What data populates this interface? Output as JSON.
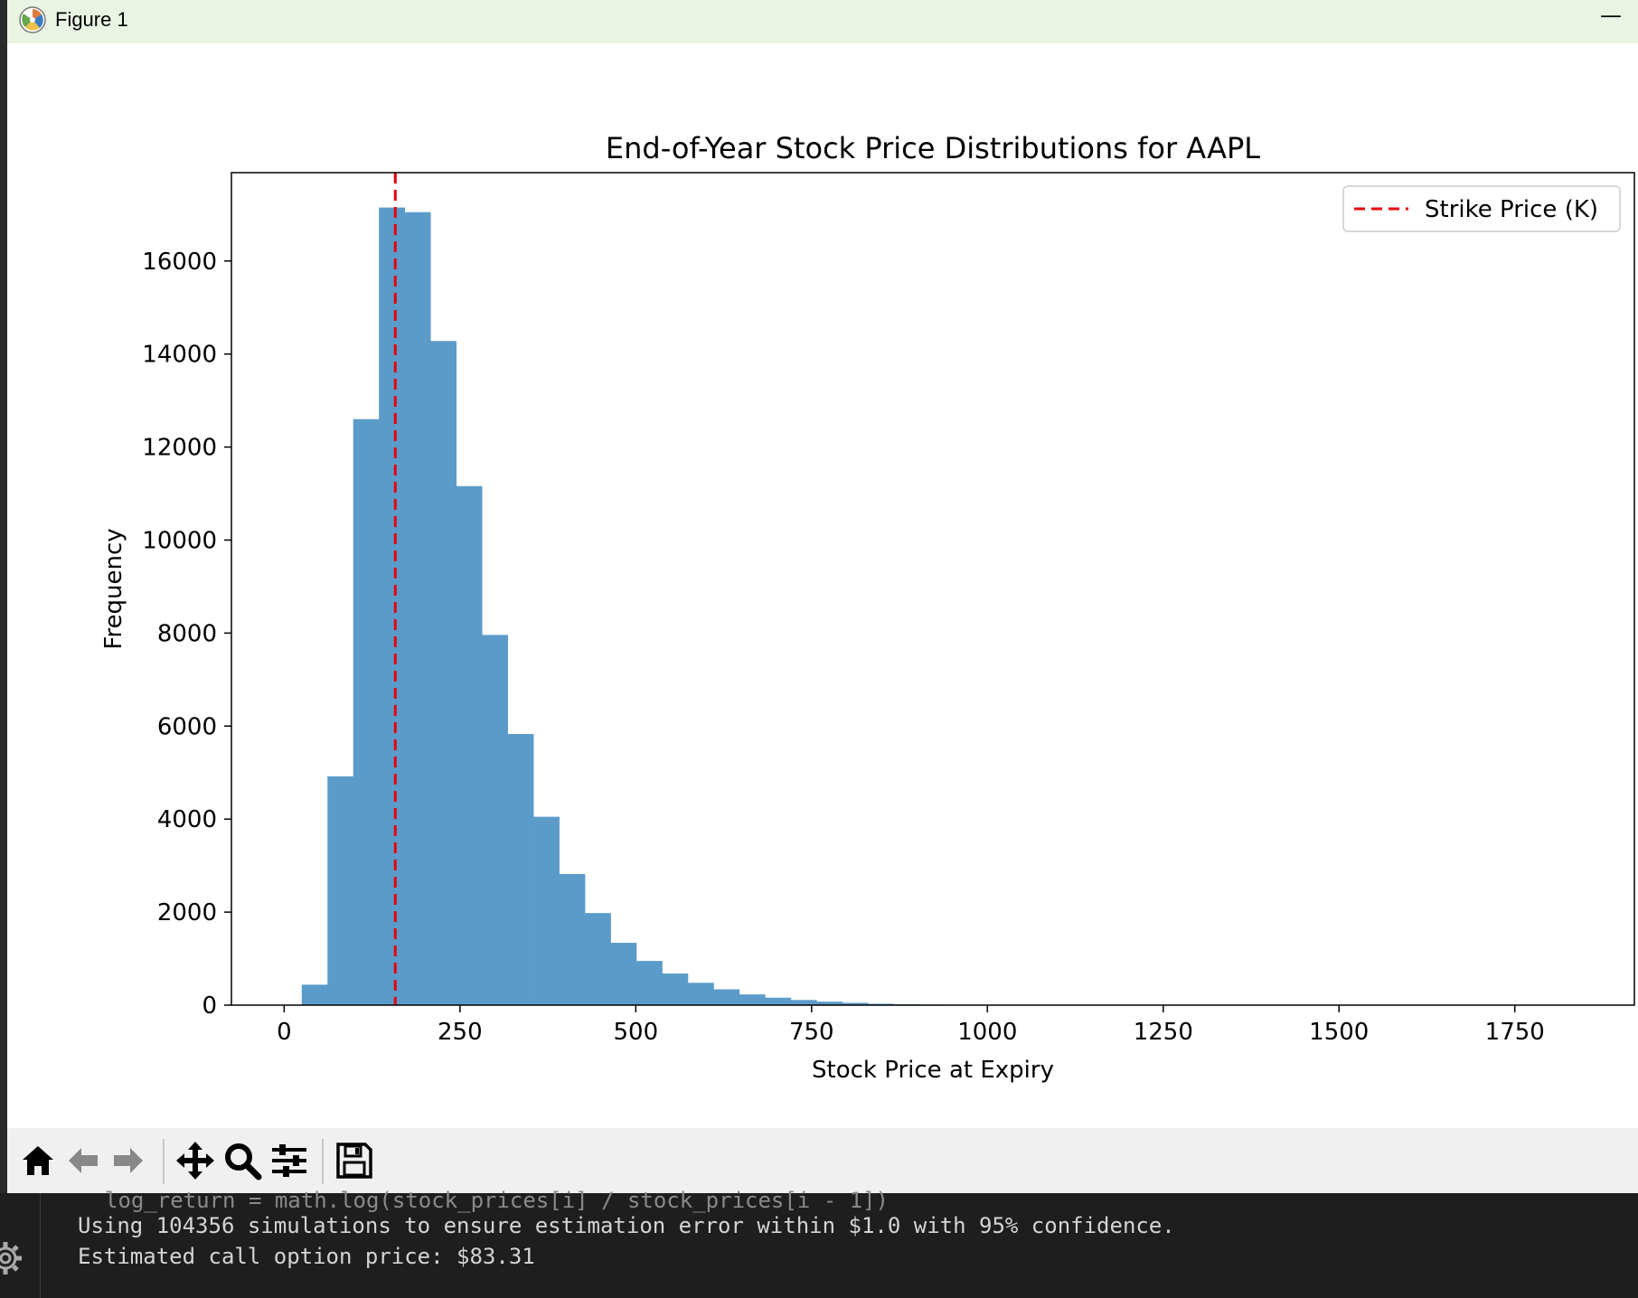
{
  "window": {
    "title": "Figure 1",
    "minimize_glyph": "—"
  },
  "toolbar": {
    "buttons": [
      {
        "name": "home-icon"
      },
      {
        "name": "back-arrow-icon"
      },
      {
        "name": "forward-arrow-icon"
      },
      {
        "name": "pan-icon"
      },
      {
        "name": "zoom-icon"
      },
      {
        "name": "configure-subplots-icon"
      },
      {
        "name": "save-icon"
      }
    ]
  },
  "chart_data": {
    "type": "bar",
    "title": "End-of-Year Stock Price Distributions for AAPL",
    "xlabel": "Stock Price at Expiry",
    "ylabel": "Frequency",
    "xlim": [
      -75,
      1920
    ],
    "ylim": [
      0,
      17900
    ],
    "xticks": [
      0,
      250,
      500,
      750,
      1000,
      1250,
      1500,
      1750
    ],
    "yticks": [
      0,
      2000,
      4000,
      6000,
      8000,
      10000,
      12000,
      14000,
      16000
    ],
    "bar_color": "#5b9bc9",
    "bin_start": 25,
    "bin_width": 36.6,
    "values": [
      440,
      4920,
      12600,
      17150,
      17050,
      14280,
      11160,
      7960,
      5830,
      4050,
      2820,
      1980,
      1340,
      950,
      680,
      480,
      340,
      230,
      160,
      110,
      75,
      50,
      30,
      18,
      12,
      8,
      5,
      3,
      2
    ],
    "strike_price": 158,
    "strike_line_color": "#e8000b",
    "legend": {
      "label": "Strike Price (K)",
      "position": "top-right"
    }
  },
  "terminal": {
    "partial_line": "log_return = math.log(stock_prices[i] / stock_prices[i - 1])",
    "lines": [
      "Using 104356 simulations to ensure estimation error within $1.0 with 95% confidence.",
      "Estimated call option price: $83.31"
    ]
  }
}
